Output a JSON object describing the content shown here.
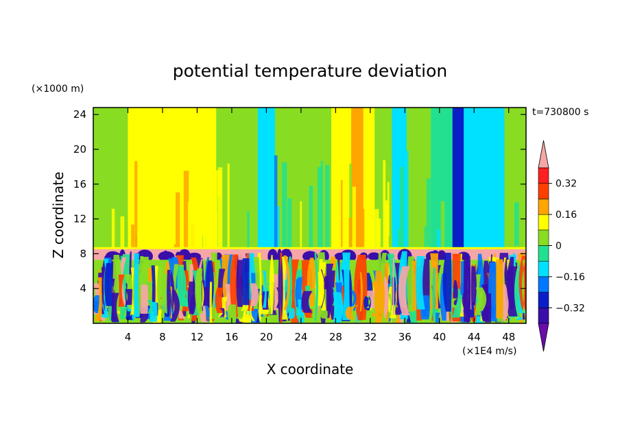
{
  "chart_data": {
    "type": "heatmap",
    "title": "potential temperature deviation",
    "time_label": "t=730800 s",
    "xlabel": "X coordinate",
    "ylabel": "Z coordinate",
    "x_unit": "(×1E4 m/s)",
    "y_unit": "(×1000 m)",
    "xlim": [
      0,
      50
    ],
    "ylim": [
      0,
      24.8
    ],
    "x_ticks": [
      4,
      8,
      12,
      16,
      20,
      24,
      28,
      32,
      36,
      40,
      44,
      48
    ],
    "y_ticks": [
      4,
      8,
      12,
      16,
      20,
      24
    ],
    "colorbar": {
      "levels": [
        -0.4,
        -0.32,
        -0.24,
        -0.16,
        -0.08,
        0,
        0.08,
        0.16,
        0.24,
        0.32,
        0.4
      ],
      "colors": [
        "#6a0dad",
        "#3a0ea8",
        "#0a1ec8",
        "#0078ff",
        "#00e0ff",
        "#22e090",
        "#88dd22",
        "#ffff00",
        "#ffa500",
        "#ff4000",
        "#ff2020",
        "#f6a6a6"
      ],
      "labels": [
        "0.32",
        "0.16",
        "0",
        "−0.16",
        "−0.32"
      ],
      "label_values": [
        0.32,
        0.16,
        0,
        -0.16,
        -0.32
      ]
    },
    "upper_bands": [
      {
        "x0": 0,
        "x1": 2.3,
        "value": 0.02
      },
      {
        "x0": 2.3,
        "x1": 4,
        "value": 0.05
      },
      {
        "x0": 4,
        "x1": 7,
        "value": 0.12
      },
      {
        "x0": 7,
        "x1": 9.3,
        "value": 0.08
      },
      {
        "x0": 9.3,
        "x1": 11.5,
        "value": 0.14
      },
      {
        "x0": 11.5,
        "x1": 14.2,
        "value": 0.1
      },
      {
        "x0": 14.2,
        "x1": 15.5,
        "value": 0.05
      },
      {
        "x0": 15.5,
        "x1": 19,
        "value": 0.02
      },
      {
        "x0": 19,
        "x1": 21,
        "value": -0.1
      },
      {
        "x0": 21,
        "x1": 27.5,
        "value": 0.02
      },
      {
        "x0": 27.5,
        "x1": 29.8,
        "value": 0.12
      },
      {
        "x0": 29.8,
        "x1": 31.2,
        "value": 0.2
      },
      {
        "x0": 31.2,
        "x1": 32.5,
        "value": 0.12
      },
      {
        "x0": 32.5,
        "x1": 34.5,
        "value": 0.07
      },
      {
        "x0": 34.5,
        "x1": 36.2,
        "value": -0.1
      },
      {
        "x0": 36.2,
        "x1": 39,
        "value": 0.02
      },
      {
        "x0": 39,
        "x1": 41.5,
        "value": -0.05
      },
      {
        "x0": 41.5,
        "x1": 42.8,
        "value": -0.25
      },
      {
        "x0": 42.8,
        "x1": 47.5,
        "value": -0.12
      },
      {
        "x0": 47.5,
        "x1": 50,
        "value": 0.02
      }
    ],
    "mid_band": {
      "z0": 7.3,
      "z1": 8.6,
      "value": 0.42
    },
    "lower_mix_values": [
      -0.38,
      -0.3,
      -0.22,
      -0.12,
      -0.05,
      0.02,
      0.1,
      0.2,
      0.3,
      0.42,
      -0.34,
      0.06
    ]
  }
}
